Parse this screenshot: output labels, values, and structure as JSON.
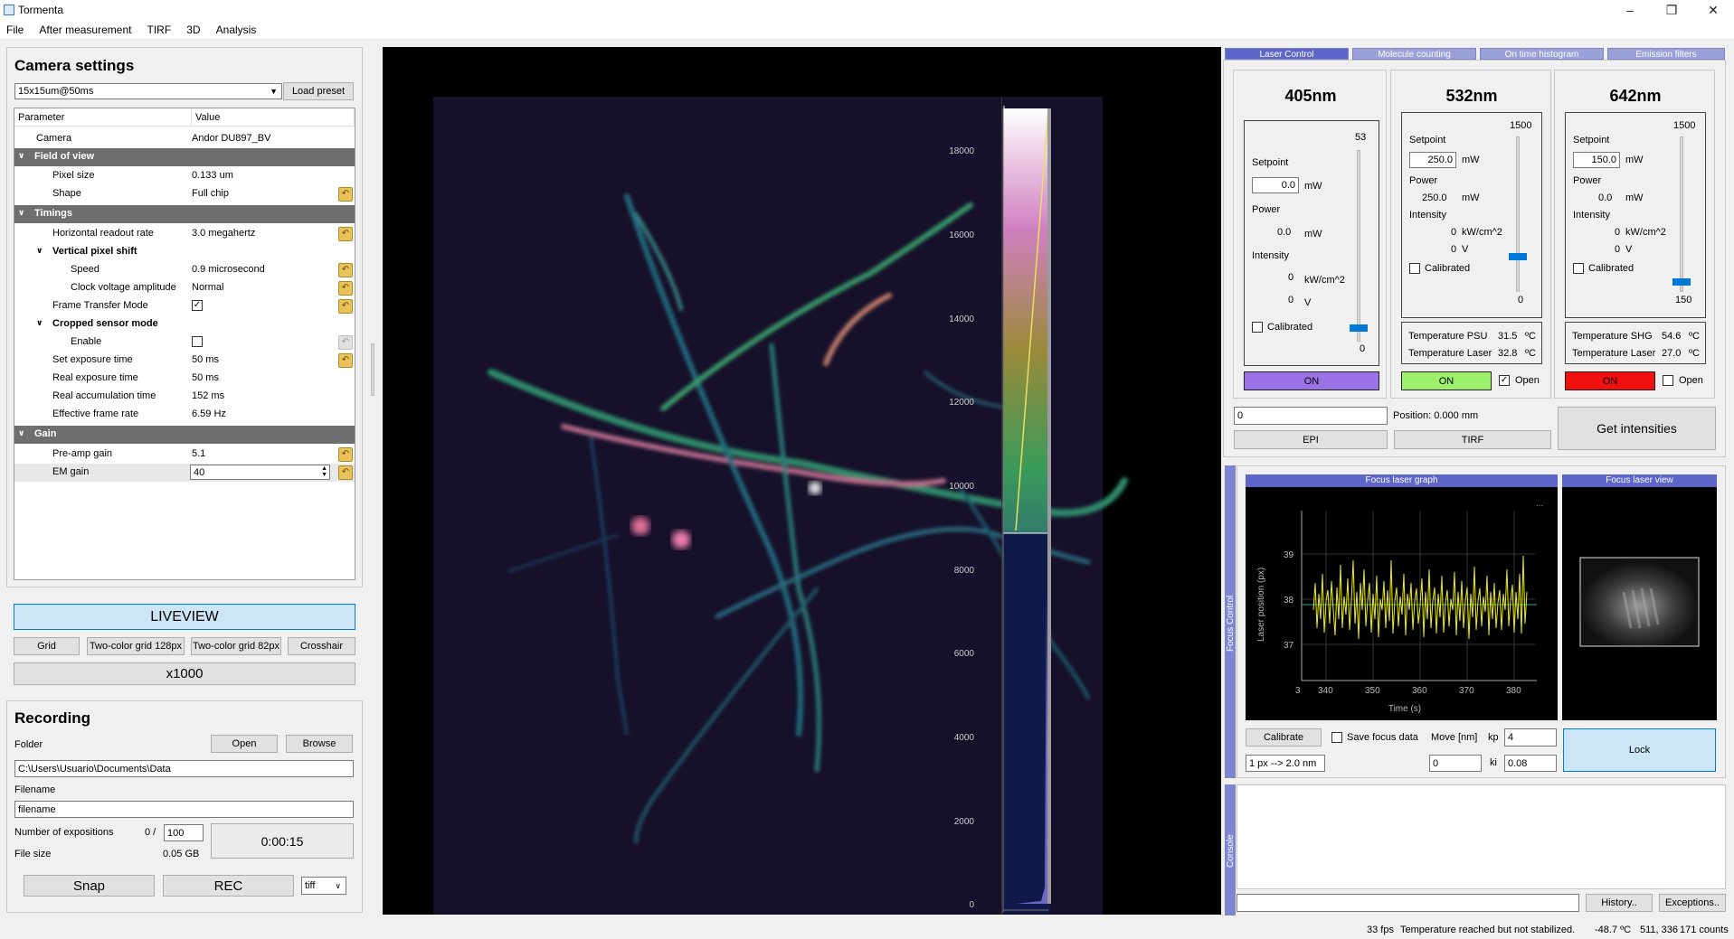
{
  "window": {
    "title": "Tormenta"
  },
  "menu": [
    "File",
    "After measurement",
    "TIRF",
    "3D",
    "Analysis"
  ],
  "camera": {
    "header": "Camera settings",
    "preset": "15x15um@50ms",
    "load_preset": "Load preset",
    "col_param": "Parameter",
    "col_value": "Value",
    "rows": [
      {
        "k": "Camera",
        "v": "Andor DU897_BV"
      },
      {
        "k": "Field of view"
      },
      {
        "k": "Pixel size",
        "v": "0.133 um"
      },
      {
        "k": "Shape",
        "v": "Full chip"
      },
      {
        "k": "Timings"
      },
      {
        "k": "Horizontal readout rate",
        "v": "3.0 megahertz"
      },
      {
        "k": "Vertical pixel shift"
      },
      {
        "k": "Speed",
        "v": "0.9 microsecond"
      },
      {
        "k": "Clock voltage amplitude",
        "v": "Normal"
      },
      {
        "k": "Frame Transfer Mode"
      },
      {
        "k": "Cropped sensor mode"
      },
      {
        "k": "Enable"
      },
      {
        "k": "Set exposure time",
        "v": "50 ms"
      },
      {
        "k": "Real exposure time",
        "v": "50 ms"
      },
      {
        "k": "Real accumulation time",
        "v": "152 ms"
      },
      {
        "k": "Effective frame rate",
        "v": "6.59 Hz"
      },
      {
        "k": "Gain"
      },
      {
        "k": "Pre-amp gain",
        "v": "5.1"
      },
      {
        "k": "EM gain",
        "v": "40"
      }
    ],
    "liveview": "LIVEVIEW",
    "grid": "Grid",
    "twocolor128": "Two-color grid 128px",
    "twocolor82": "Two-color grid 82px",
    "crosshair": "Crosshair",
    "x1000": "x1000"
  },
  "recording": {
    "header": "Recording",
    "folder_label": "Folder",
    "open": "Open",
    "browse": "Browse",
    "folder": "C:\\Users\\Usuario\\Documents\\Data",
    "filename_label": "Filename",
    "filename": "filename",
    "nexp_label": "Number of expositions",
    "nexp_done": "0 /",
    "nexp_total": "100",
    "filesize_label": "File size",
    "filesize": "0.05 GB",
    "time": "0:00:15",
    "snap": "Snap",
    "rec": "REC",
    "format": "tiff"
  },
  "colorbar": {
    "ticks": [
      "18000",
      "16000",
      "14000",
      "12000",
      "10000",
      "8000",
      "6000",
      "4000",
      "2000",
      "0"
    ]
  },
  "tabs": [
    "Laser Control",
    "Molecule counting",
    "On time histogram",
    "Emission filters"
  ],
  "lasers": [
    {
      "name": "405nm",
      "setpoint_label": "Setpoint",
      "setpoint": "0.0",
      "unit": "mW",
      "power_label": "Power",
      "power": "0.0",
      "intensity_label": "Intensity",
      "intensity": "0",
      "iunit": "kW/cm^2",
      "volt": "0",
      "vunit": "V",
      "calibrated": "Calibrated",
      "max": "53",
      "min": "0",
      "on": "ON",
      "color": "#9b73e6"
    },
    {
      "name": "532nm",
      "setpoint_label": "Setpoint",
      "setpoint": "250.0",
      "unit": "mW",
      "power_label": "Power",
      "power": "250.0",
      "intensity_label": "Intensity",
      "intensity": "0",
      "iunit": "kW/cm^2",
      "volt": "0",
      "vunit": "V",
      "calibrated": "Calibrated",
      "max": "1500",
      "min": "0",
      "on": "ON",
      "open": "Open",
      "color": "#9cf06b",
      "temp1_label": "Temperature PSU",
      "temp1": "31.5",
      "temp2_label": "Temperature Laser",
      "temp2": "32.8",
      "tunit": "ºC"
    },
    {
      "name": "642nm",
      "setpoint_label": "Setpoint",
      "setpoint": "150.0",
      "unit": "mW",
      "power_label": "Power",
      "power": "0.0",
      "intensity_label": "Intensity",
      "intensity": "0",
      "iunit": "kW/cm^2",
      "volt": "0",
      "vunit": "V",
      "calibrated": "Calibrated",
      "max": "1500",
      "min": "150",
      "on": "ON",
      "open": "Open",
      "color": "#f01010",
      "temp1_label": "Temperature SHG",
      "temp1": "54.6",
      "temp2_label": "Temperature Laser",
      "temp2": "27.0",
      "tunit": "ºC"
    }
  ],
  "stage": {
    "value": "0",
    "position": "Position: 0.000 mm",
    "epi": "EPI",
    "tirf": "TIRF",
    "get_intensities": "Get intensities"
  },
  "focus": {
    "side_label": "Focus Control",
    "graph_title": "Focus laser graph",
    "view_title": "Focus laser view",
    "ylabel": "Laser position (px)",
    "xlabel": "Time (s)",
    "yticks": [
      "39",
      "38",
      "37"
    ],
    "xticks": [
      "3",
      "340",
      "350",
      "360",
      "370",
      "380"
    ],
    "calibrate": "Calibrate",
    "save_focus": "Save focus data",
    "move_label": "Move [nm]",
    "kp_label": "kp",
    "kp": "4",
    "ki_label": "ki",
    "ki": "0.08",
    "move": "0",
    "px_nm": "1 px --> 2.0 nm",
    "lock": "Lock"
  },
  "console": {
    "side_label": "Console",
    "history": "History..",
    "exceptions": "Exceptions.."
  },
  "status": {
    "fps": "33 fps",
    "temp": "Temperature reached but not stabilized.",
    "temp_val": "-48.7 ºC",
    "coords": "511, 336",
    "counts": "171 counts"
  }
}
